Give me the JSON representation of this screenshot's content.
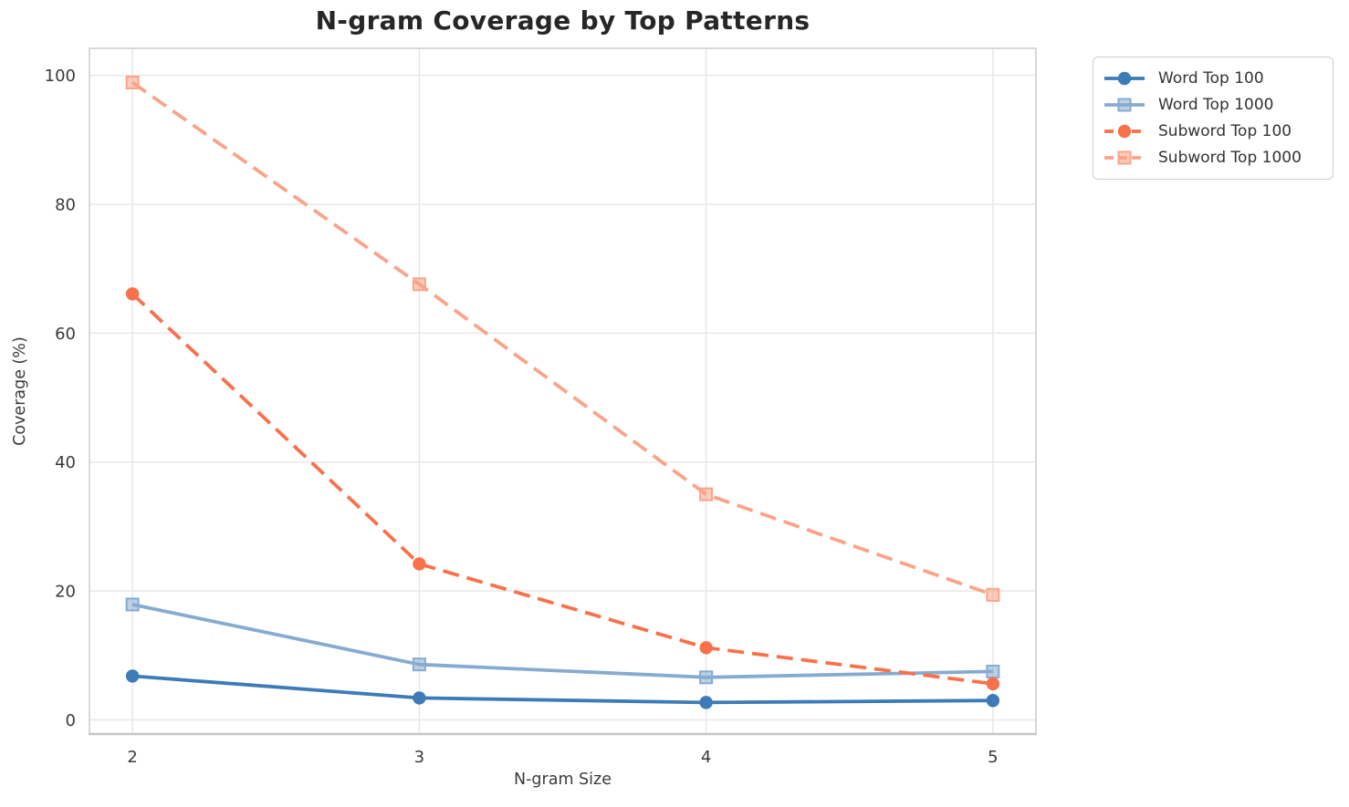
{
  "figure": {
    "title": "N-gram Coverage by Top Patterns",
    "xlabel": "N-gram Size",
    "ylabel": "Coverage (%)"
  },
  "chart_data": {
    "type": "line",
    "title": "N-gram Coverage by Top Patterns",
    "xlabel": "N-gram Size",
    "ylabel": "Coverage (%)",
    "x": [
      2,
      3,
      4,
      5
    ],
    "xticks": [
      "2",
      "3",
      "4",
      "5"
    ],
    "yticks": [
      "0",
      "20",
      "40",
      "60",
      "80",
      "100"
    ],
    "ytick_values": [
      0,
      20,
      40,
      60,
      80,
      100
    ],
    "xlim": [
      1.85,
      5.15
    ],
    "ylim": [
      -2.2,
      104.2
    ],
    "grid": true,
    "legend_position": "outside-top-right",
    "colors": {
      "grid": "#e9e9e9",
      "spine": "#d4d4d4",
      "spine_bottom": "#c6c6c6",
      "tick_text": "#3a3a3a"
    },
    "series": [
      {
        "name": "Word Top 100",
        "values": [
          6.8,
          3.4,
          2.7,
          3.0
        ],
        "color": "#3d7bb6",
        "marker": "circle",
        "dash": "solid"
      },
      {
        "name": "Word Top 1000",
        "values": [
          17.9,
          8.6,
          6.6,
          7.5
        ],
        "color": "#86abd0",
        "marker": "square",
        "dash": "solid"
      },
      {
        "name": "Subword Top 100",
        "values": [
          66.1,
          24.2,
          11.2,
          5.6
        ],
        "color": "#f8714b",
        "marker": "circle",
        "dash": "dashed"
      },
      {
        "name": "Subword Top 1000",
        "values": [
          98.9,
          67.6,
          35.0,
          19.4
        ],
        "color": "#fba388",
        "marker": "square",
        "dash": "dashed"
      }
    ]
  }
}
